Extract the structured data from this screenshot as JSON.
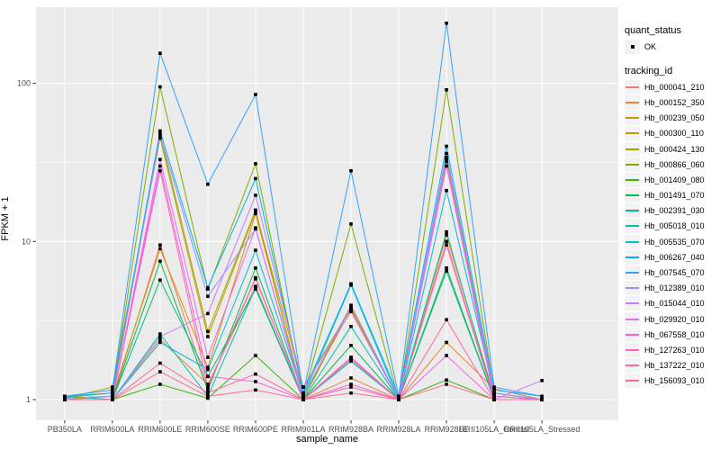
{
  "chart_data": {
    "type": "line",
    "xlabel": "sample_name",
    "ylabel": "FPKM + 1",
    "y_scale": "log10",
    "y_ticks": [
      1,
      10,
      100
    ],
    "y_tick_labels": [
      "1",
      "10",
      "100"
    ],
    "ylim": [
      1,
      300
    ],
    "grid": "on",
    "panel_bg": "#EBEBEB",
    "grid_color": "#FFFFFF",
    "axis_text_color": "#4D4D4D",
    "tick_color": "#333333",
    "point_color": "#000000",
    "legend": {
      "position": "right",
      "quant_status_title": "quant_status",
      "quant_status_items": [
        "OK"
      ],
      "tracking_id_title": "tracking_id",
      "key_bg": "#F2F2F2"
    },
    "x_categories": [
      "PB350LA",
      "RRIM600LA",
      "RRIM600LE",
      "RRIM600SE",
      "RRIM600PE",
      "RRIM901LA",
      "RRIM928BA",
      "RRIM928LA",
      "RRIM928LE",
      "RRII105LA_Control",
      "RRII105LA_Stressed"
    ],
    "series": [
      {
        "name": "Hb_000041_210",
        "color": "#F8766D",
        "values": [
          1.0,
          1.0,
          9.5,
          1.2,
          5.8,
          1.0,
          1.85,
          1.0,
          10.0,
          1.0,
          1.0
        ]
      },
      {
        "name": "Hb_000152_350",
        "color": "#EA8331",
        "values": [
          1.0,
          1.0,
          2.4,
          1.25,
          5.2,
          1.0,
          1.37,
          1.0,
          2.3,
          1.17,
          1.0
        ]
      },
      {
        "name": "Hb_000239_050",
        "color": "#D89000",
        "values": [
          1.0,
          1.05,
          9.0,
          1.6,
          15.0,
          1.05,
          3.7,
          1.0,
          11.0,
          1.05,
          1.0
        ]
      },
      {
        "name": "Hb_000300_110",
        "color": "#C09B00",
        "values": [
          1.02,
          1.2,
          45.0,
          2.5,
          15.5,
          1.2,
          3.8,
          1.0,
          34.0,
          1.1,
          1.0
        ]
      },
      {
        "name": "Hb_000424_130",
        "color": "#A3A500",
        "values": [
          1.02,
          1.05,
          48.0,
          2.7,
          15.8,
          1.0,
          3.9,
          1.0,
          33.0,
          1.05,
          1.0
        ]
      },
      {
        "name": "Hb_000866_060",
        "color": "#7CAE00",
        "values": [
          1.03,
          1.1,
          95.0,
          5.0,
          31.0,
          1.05,
          12.9,
          1.0,
          91.0,
          1.1,
          1.0
        ]
      },
      {
        "name": "Hb_001409_080",
        "color": "#39B600",
        "values": [
          1.0,
          1.0,
          1.25,
          1.02,
          1.9,
          1.0,
          1.8,
          1.0,
          1.33,
          1.0,
          1.0
        ]
      },
      {
        "name": "Hb_001491_070",
        "color": "#00BB4E",
        "values": [
          1.0,
          1.0,
          7.5,
          1.15,
          6.8,
          1.0,
          2.2,
          1.0,
          6.8,
          1.0,
          1.0
        ]
      },
      {
        "name": "Hb_002391_030",
        "color": "#00BF7D",
        "values": [
          1.0,
          1.0,
          5.7,
          1.4,
          5.0,
          1.0,
          1.75,
          1.0,
          6.5,
          1.0,
          1.0
        ]
      },
      {
        "name": "Hb_005018_010",
        "color": "#00C0AF",
        "values": [
          1.0,
          1.0,
          2.6,
          1.05,
          5.1,
          1.0,
          2.9,
          1.0,
          11.5,
          1.0,
          1.0
        ]
      },
      {
        "name": "Hb_005535_070",
        "color": "#00BCD8",
        "values": [
          1.05,
          1.0,
          2.3,
          1.55,
          8.8,
          1.05,
          5.3,
          1.0,
          21.0,
          1.1,
          1.0
        ]
      },
      {
        "name": "Hb_006267_040",
        "color": "#00B0F6",
        "values": [
          1.05,
          1.1,
          50.0,
          5.1,
          25.0,
          1.1,
          5.4,
          1.05,
          40.0,
          1.15,
          1.05
        ]
      },
      {
        "name": "Hb_007545_070",
        "color": "#35A2FF",
        "values": [
          1.05,
          1.15,
          155.0,
          23.0,
          85.0,
          1.1,
          28.0,
          1.05,
          240.0,
          1.2,
          1.05
        ]
      },
      {
        "name": "Hb_012389_010",
        "color": "#9590FF",
        "values": [
          1.02,
          1.05,
          47.0,
          4.5,
          12.0,
          1.05,
          3.95,
          1.0,
          36.0,
          1.1,
          1.0
        ]
      },
      {
        "name": "Hb_015044_010",
        "color": "#C77CFF",
        "values": [
          1.0,
          1.0,
          2.5,
          3.5,
          19.6,
          1.2,
          3.6,
          1.0,
          32.0,
          1.0,
          1.32
        ]
      },
      {
        "name": "Hb_029920_010",
        "color": "#E76BF3",
        "values": [
          1.0,
          1.0,
          33.0,
          1.85,
          12.2,
          1.0,
          1.8,
          1.0,
          30.0,
          1.05,
          1.0
        ]
      },
      {
        "name": "Hb_067558_010",
        "color": "#FA62DB",
        "values": [
          1.0,
          1.0,
          30.0,
          1.4,
          1.3,
          1.0,
          1.25,
          1.0,
          1.9,
          1.0,
          1.0
        ]
      },
      {
        "name": "Hb_127263_010",
        "color": "#FF61C3",
        "values": [
          1.0,
          1.0,
          28.0,
          1.2,
          5.9,
          1.0,
          1.85,
          1.0,
          9.5,
          1.0,
          1.0
        ]
      },
      {
        "name": "Hb_137222_010",
        "color": "#FF67A4",
        "values": [
          1.0,
          1.0,
          1.7,
          1.1,
          1.45,
          1.0,
          1.2,
          1.0,
          3.2,
          1.0,
          1.0
        ]
      },
      {
        "name": "Hb_156093_010",
        "color": "#FF6C90",
        "values": [
          1.0,
          1.0,
          1.5,
          1.05,
          1.15,
          1.0,
          1.1,
          1.0,
          1.25,
          1.0,
          1.0
        ]
      }
    ]
  }
}
